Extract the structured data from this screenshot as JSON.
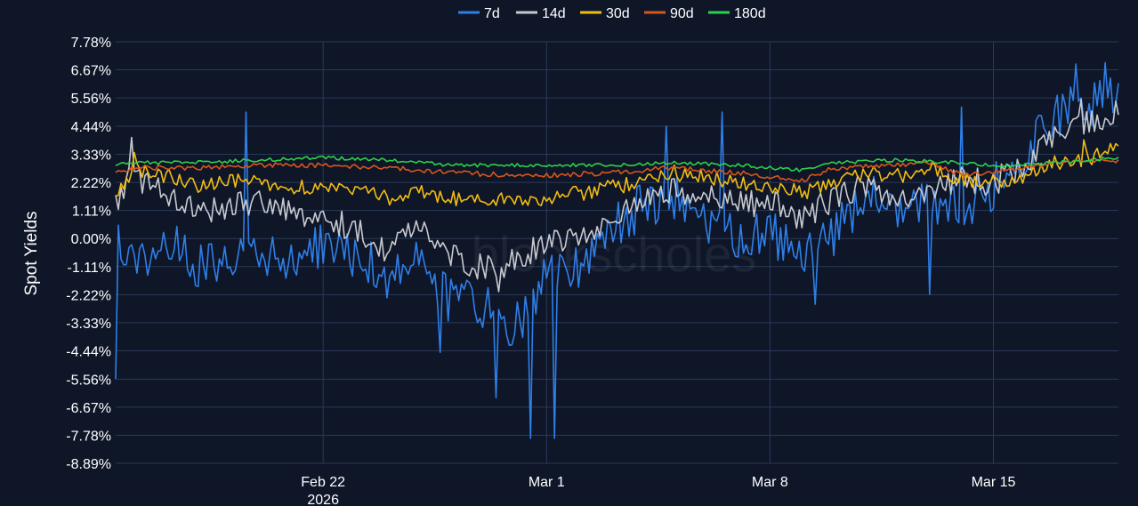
{
  "chart_data": {
    "type": "line",
    "ylabel": "Spot Yields",
    "watermark": "blockscholes",
    "y_ticks": [
      "7.78%",
      "6.67%",
      "5.56%",
      "4.44%",
      "3.33%",
      "2.22%",
      "1.11%",
      "0.00%",
      "-1.11%",
      "-2.22%",
      "-3.33%",
      "-4.44%",
      "-5.56%",
      "-6.67%",
      "-7.78%",
      "-8.89%"
    ],
    "ylim": [
      -8.89,
      7.78
    ],
    "xlim": [
      "2026-02-15T12:00",
      "2026-03-18T22:00"
    ],
    "x_ticks": [
      {
        "date": "2026-02-22",
        "label": "Feb 22",
        "sublabel": "2026"
      },
      {
        "date": "2026-03-01",
        "label": "Mar 1",
        "sublabel": ""
      },
      {
        "date": "2026-03-08",
        "label": "Mar 8",
        "sublabel": ""
      },
      {
        "date": "2026-03-15",
        "label": "Mar 15",
        "sublabel": ""
      }
    ],
    "grid": true,
    "legend_position": "top-center",
    "series": [
      {
        "name": "7d",
        "color": "#2f7fe8",
        "noise": 0.95,
        "points": [
          [
            "2026-02-15T12:00",
            0.0
          ],
          [
            "2026-02-16T00:00",
            -1.0
          ],
          [
            "2026-02-17T00:00",
            0.0
          ],
          [
            "2026-02-18T00:00",
            -1.1
          ],
          [
            "2026-02-19T00:00",
            -0.6
          ],
          [
            "2026-02-20T00:00",
            -0.8
          ],
          [
            "2026-02-21T00:00",
            -0.9
          ],
          [
            "2026-02-22T00:00",
            -0.3
          ],
          [
            "2026-02-23T00:00",
            -0.6
          ],
          [
            "2026-02-24T00:00",
            -1.4
          ],
          [
            "2026-02-25T00:00",
            -0.9
          ],
          [
            "2026-02-26T00:00",
            -2.5
          ],
          [
            "2026-02-27T00:00",
            -2.7
          ],
          [
            "2026-02-28T00:00",
            -3.6
          ],
          [
            "2026-03-01T00:00",
            -1.6
          ],
          [
            "2026-03-02T00:00",
            -1.0
          ],
          [
            "2026-03-03T00:00",
            0.3
          ],
          [
            "2026-03-04T00:00",
            1.3
          ],
          [
            "2026-03-05T00:00",
            1.6
          ],
          [
            "2026-03-06T00:00",
            0.5
          ],
          [
            "2026-03-07T00:00",
            0.0
          ],
          [
            "2026-03-08T00:00",
            0.3
          ],
          [
            "2026-03-09T00:00",
            -1.0
          ],
          [
            "2026-03-10T00:00",
            0.2
          ],
          [
            "2026-03-11T00:00",
            1.8
          ],
          [
            "2026-03-12T00:00",
            0.8
          ],
          [
            "2026-03-13T00:00",
            1.6
          ],
          [
            "2026-03-14T00:00",
            1.2
          ],
          [
            "2026-03-15T00:00",
            2.0
          ],
          [
            "2026-03-16T00:00",
            3.3
          ],
          [
            "2026-03-17T00:00",
            4.8
          ],
          [
            "2026-03-18T00:00",
            5.4
          ],
          [
            "2026-03-18T22:00",
            5.6
          ]
        ],
        "spikes": [
          [
            "2026-02-15T12:00",
            -5.56
          ],
          [
            "2026-02-16T03:00",
            3.8
          ],
          [
            "2026-02-19T14:00",
            5.0
          ],
          [
            "2026-02-25T16:00",
            -4.5
          ],
          [
            "2026-02-27T10:00",
            -6.3
          ],
          [
            "2026-02-28T12:00",
            -7.9
          ],
          [
            "2026-03-01T06:00",
            -7.9
          ],
          [
            "2026-03-04T18:00",
            4.44
          ],
          [
            "2026-03-05T01:00",
            -4.2
          ],
          [
            "2026-03-06T12:00",
            5.0
          ],
          [
            "2026-03-09T10:00",
            -2.6
          ],
          [
            "2026-03-13T00:00",
            -2.2
          ],
          [
            "2026-03-14T00:00",
            5.2
          ],
          [
            "2026-03-17T14:00",
            6.9
          ],
          [
            "2026-03-18T12:00",
            6.95
          ]
        ]
      },
      {
        "name": "14d",
        "color": "#c7c9ce",
        "noise": 0.55,
        "points": [
          [
            "2026-02-15T12:00",
            1.5
          ],
          [
            "2026-02-16T00:00",
            2.5
          ],
          [
            "2026-02-17T00:00",
            1.9
          ],
          [
            "2026-02-18T00:00",
            1.1
          ],
          [
            "2026-02-19T00:00",
            1.2
          ],
          [
            "2026-02-20T00:00",
            1.5
          ],
          [
            "2026-02-21T00:00",
            0.9
          ],
          [
            "2026-02-22T00:00",
            1.0
          ],
          [
            "2026-02-23T00:00",
            0.3
          ],
          [
            "2026-02-24T00:00",
            -0.4
          ],
          [
            "2026-02-25T00:00",
            0.5
          ],
          [
            "2026-02-26T00:00",
            -0.6
          ],
          [
            "2026-02-27T00:00",
            -1.2
          ],
          [
            "2026-02-28T00:00",
            -0.9
          ],
          [
            "2026-03-01T00:00",
            0.0
          ],
          [
            "2026-03-02T00:00",
            0.1
          ],
          [
            "2026-03-03T00:00",
            0.8
          ],
          [
            "2026-03-04T00:00",
            1.4
          ],
          [
            "2026-03-05T00:00",
            2.0
          ],
          [
            "2026-03-06T00:00",
            1.6
          ],
          [
            "2026-03-07T00:00",
            1.3
          ],
          [
            "2026-03-08T00:00",
            1.4
          ],
          [
            "2026-03-09T00:00",
            0.8
          ],
          [
            "2026-03-10T00:00",
            1.6
          ],
          [
            "2026-03-11T00:00",
            2.1
          ],
          [
            "2026-03-12T00:00",
            1.6
          ],
          [
            "2026-03-13T00:00",
            2.1
          ],
          [
            "2026-03-14T00:00",
            2.3
          ],
          [
            "2026-03-15T00:00",
            2.2
          ],
          [
            "2026-03-16T00:00",
            3.0
          ],
          [
            "2026-03-17T00:00",
            4.1
          ],
          [
            "2026-03-18T00:00",
            4.6
          ],
          [
            "2026-03-18T22:00",
            5.0
          ]
        ],
        "spikes": [
          [
            "2026-02-16T00:00",
            4.0
          ],
          [
            "2026-02-27T12:00",
            -2.1
          ],
          [
            "2026-03-17T18:00",
            5.5
          ]
        ]
      },
      {
        "name": "30d",
        "color": "#f2bc12",
        "noise": 0.32,
        "points": [
          [
            "2026-02-15T12:00",
            1.6
          ],
          [
            "2026-02-16T00:00",
            2.7
          ],
          [
            "2026-02-17T00:00",
            2.5
          ],
          [
            "2026-02-18T00:00",
            2.1
          ],
          [
            "2026-02-19T00:00",
            2.2
          ],
          [
            "2026-02-20T00:00",
            2.3
          ],
          [
            "2026-02-21T00:00",
            2.0
          ],
          [
            "2026-02-22T00:00",
            2.1
          ],
          [
            "2026-02-23T00:00",
            1.9
          ],
          [
            "2026-02-24T00:00",
            1.6
          ],
          [
            "2026-02-25T00:00",
            1.9
          ],
          [
            "2026-02-26T00:00",
            1.6
          ],
          [
            "2026-02-27T00:00",
            1.5
          ],
          [
            "2026-02-28T00:00",
            1.5
          ],
          [
            "2026-03-01T00:00",
            1.6
          ],
          [
            "2026-03-02T00:00",
            1.8
          ],
          [
            "2026-03-03T00:00",
            2.0
          ],
          [
            "2026-03-04T00:00",
            2.3
          ],
          [
            "2026-03-05T00:00",
            2.6
          ],
          [
            "2026-03-06T00:00",
            2.4
          ],
          [
            "2026-03-07T00:00",
            2.2
          ],
          [
            "2026-03-08T00:00",
            2.0
          ],
          [
            "2026-03-09T00:00",
            1.8
          ],
          [
            "2026-03-10T00:00",
            2.2
          ],
          [
            "2026-03-11T00:00",
            2.6
          ],
          [
            "2026-03-12T00:00",
            2.5
          ],
          [
            "2026-03-13T00:00",
            2.7
          ],
          [
            "2026-03-14T00:00",
            2.4
          ],
          [
            "2026-03-15T00:00",
            2.2
          ],
          [
            "2026-03-16T00:00",
            2.5
          ],
          [
            "2026-03-17T00:00",
            3.0
          ],
          [
            "2026-03-18T00:00",
            3.2
          ],
          [
            "2026-03-18T22:00",
            3.6
          ]
        ],
        "spikes": [
          [
            "2026-02-16T02:00",
            3.4
          ],
          [
            "2026-03-17T20:00",
            3.9
          ]
        ]
      },
      {
        "name": "90d",
        "color": "#d8571b",
        "noise": 0.1,
        "points": [
          [
            "2026-02-15T12:00",
            2.6
          ],
          [
            "2026-02-16T00:00",
            2.8
          ],
          [
            "2026-02-18T00:00",
            2.8
          ],
          [
            "2026-02-20T00:00",
            2.9
          ],
          [
            "2026-02-22T00:00",
            2.9
          ],
          [
            "2026-02-24T00:00",
            2.8
          ],
          [
            "2026-02-26T00:00",
            2.6
          ],
          [
            "2026-02-28T00:00",
            2.5
          ],
          [
            "2026-03-01T00:00",
            2.5
          ],
          [
            "2026-03-03T00:00",
            2.6
          ],
          [
            "2026-03-05T00:00",
            2.8
          ],
          [
            "2026-03-07T00:00",
            2.6
          ],
          [
            "2026-03-09T00:00",
            2.3
          ],
          [
            "2026-03-10T00:00",
            2.8
          ],
          [
            "2026-03-12T00:00",
            2.9
          ],
          [
            "2026-03-13T00:00",
            3.0
          ],
          [
            "2026-03-14T00:00",
            2.5
          ],
          [
            "2026-03-15T00:00",
            2.6
          ],
          [
            "2026-03-16T00:00",
            2.8
          ],
          [
            "2026-03-17T00:00",
            3.0
          ],
          [
            "2026-03-18T22:00",
            3.1
          ]
        ],
        "spikes": []
      },
      {
        "name": "180d",
        "color": "#2ecf4d",
        "noise": 0.07,
        "points": [
          [
            "2026-02-15T12:00",
            2.9
          ],
          [
            "2026-02-16T00:00",
            3.0
          ],
          [
            "2026-02-18T00:00",
            3.0
          ],
          [
            "2026-02-20T00:00",
            3.1
          ],
          [
            "2026-02-22T00:00",
            3.2
          ],
          [
            "2026-02-24T00:00",
            3.1
          ],
          [
            "2026-02-26T00:00",
            2.9
          ],
          [
            "2026-02-28T00:00",
            2.9
          ],
          [
            "2026-03-01T00:00",
            2.9
          ],
          [
            "2026-03-03T00:00",
            2.9
          ],
          [
            "2026-03-05T00:00",
            3.0
          ],
          [
            "2026-03-07T00:00",
            2.9
          ],
          [
            "2026-03-09T00:00",
            2.7
          ],
          [
            "2026-03-10T00:00",
            3.0
          ],
          [
            "2026-03-12T00:00",
            3.1
          ],
          [
            "2026-03-14T00:00",
            3.0
          ],
          [
            "2026-03-15T00:00",
            2.9
          ],
          [
            "2026-03-16T00:00",
            2.9
          ],
          [
            "2026-03-17T00:00",
            3.0
          ],
          [
            "2026-03-18T22:00",
            3.2
          ]
        ],
        "spikes": []
      }
    ]
  }
}
